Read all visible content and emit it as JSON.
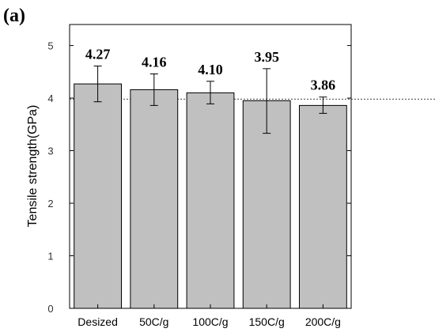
{
  "panel_label": "(a)",
  "chart_data": {
    "type": "bar",
    "title": "",
    "xlabel": "",
    "ylabel": "Tensile strength(GPa)",
    "ylim": [
      0,
      5.4
    ],
    "yticks": [
      0,
      1,
      2,
      3,
      4,
      5
    ],
    "categories": [
      "Desized",
      "50C/g",
      "100C/g",
      "150C/g",
      "200C/g"
    ],
    "values": [
      4.27,
      4.16,
      4.1,
      3.95,
      3.86
    ],
    "value_labels": [
      "4.27",
      "4.16",
      "4.10",
      "3.95",
      "3.86"
    ],
    "error_low": [
      3.93,
      3.86,
      3.89,
      3.33,
      3.71
    ],
    "error_high": [
      4.61,
      4.46,
      4.32,
      4.56,
      4.02
    ],
    "reference_line": 3.98,
    "bar_color": "#c0c0c0",
    "bar_edge_color": "#000000",
    "reference_line_style": "dotted",
    "grid": false,
    "legend": "none"
  }
}
